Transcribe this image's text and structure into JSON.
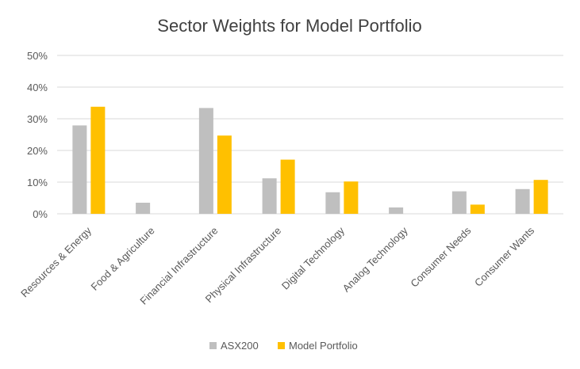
{
  "chart_data": {
    "type": "bar",
    "title": "Sector Weights for Model Portfolio",
    "xlabel": "",
    "ylabel": "",
    "ylim": [
      0,
      50
    ],
    "yticks": [
      0,
      10,
      20,
      30,
      40,
      50
    ],
    "ytick_labels": [
      "0%",
      "10%",
      "20%",
      "30%",
      "40%",
      "50%"
    ],
    "grid": true,
    "legend": "bottom",
    "categories": [
      "Resources & Energy",
      "Food & Agriculture",
      "Financial Infrastructure",
      "Physical Infrastructure",
      "Digital Technology",
      "Analog Technology",
      "Consumer Needs",
      "Consumer Wants"
    ],
    "series": [
      {
        "name": "ASX200",
        "color": "#bfbfbf",
        "values": [
          27.9,
          3.5,
          33.4,
          11.2,
          6.8,
          2.0,
          7.1,
          7.8
        ]
      },
      {
        "name": "Model Portfolio",
        "color": "#ffc000",
        "values": [
          33.8,
          0,
          24.7,
          17.1,
          10.2,
          0,
          2.9,
          10.7
        ]
      }
    ]
  }
}
